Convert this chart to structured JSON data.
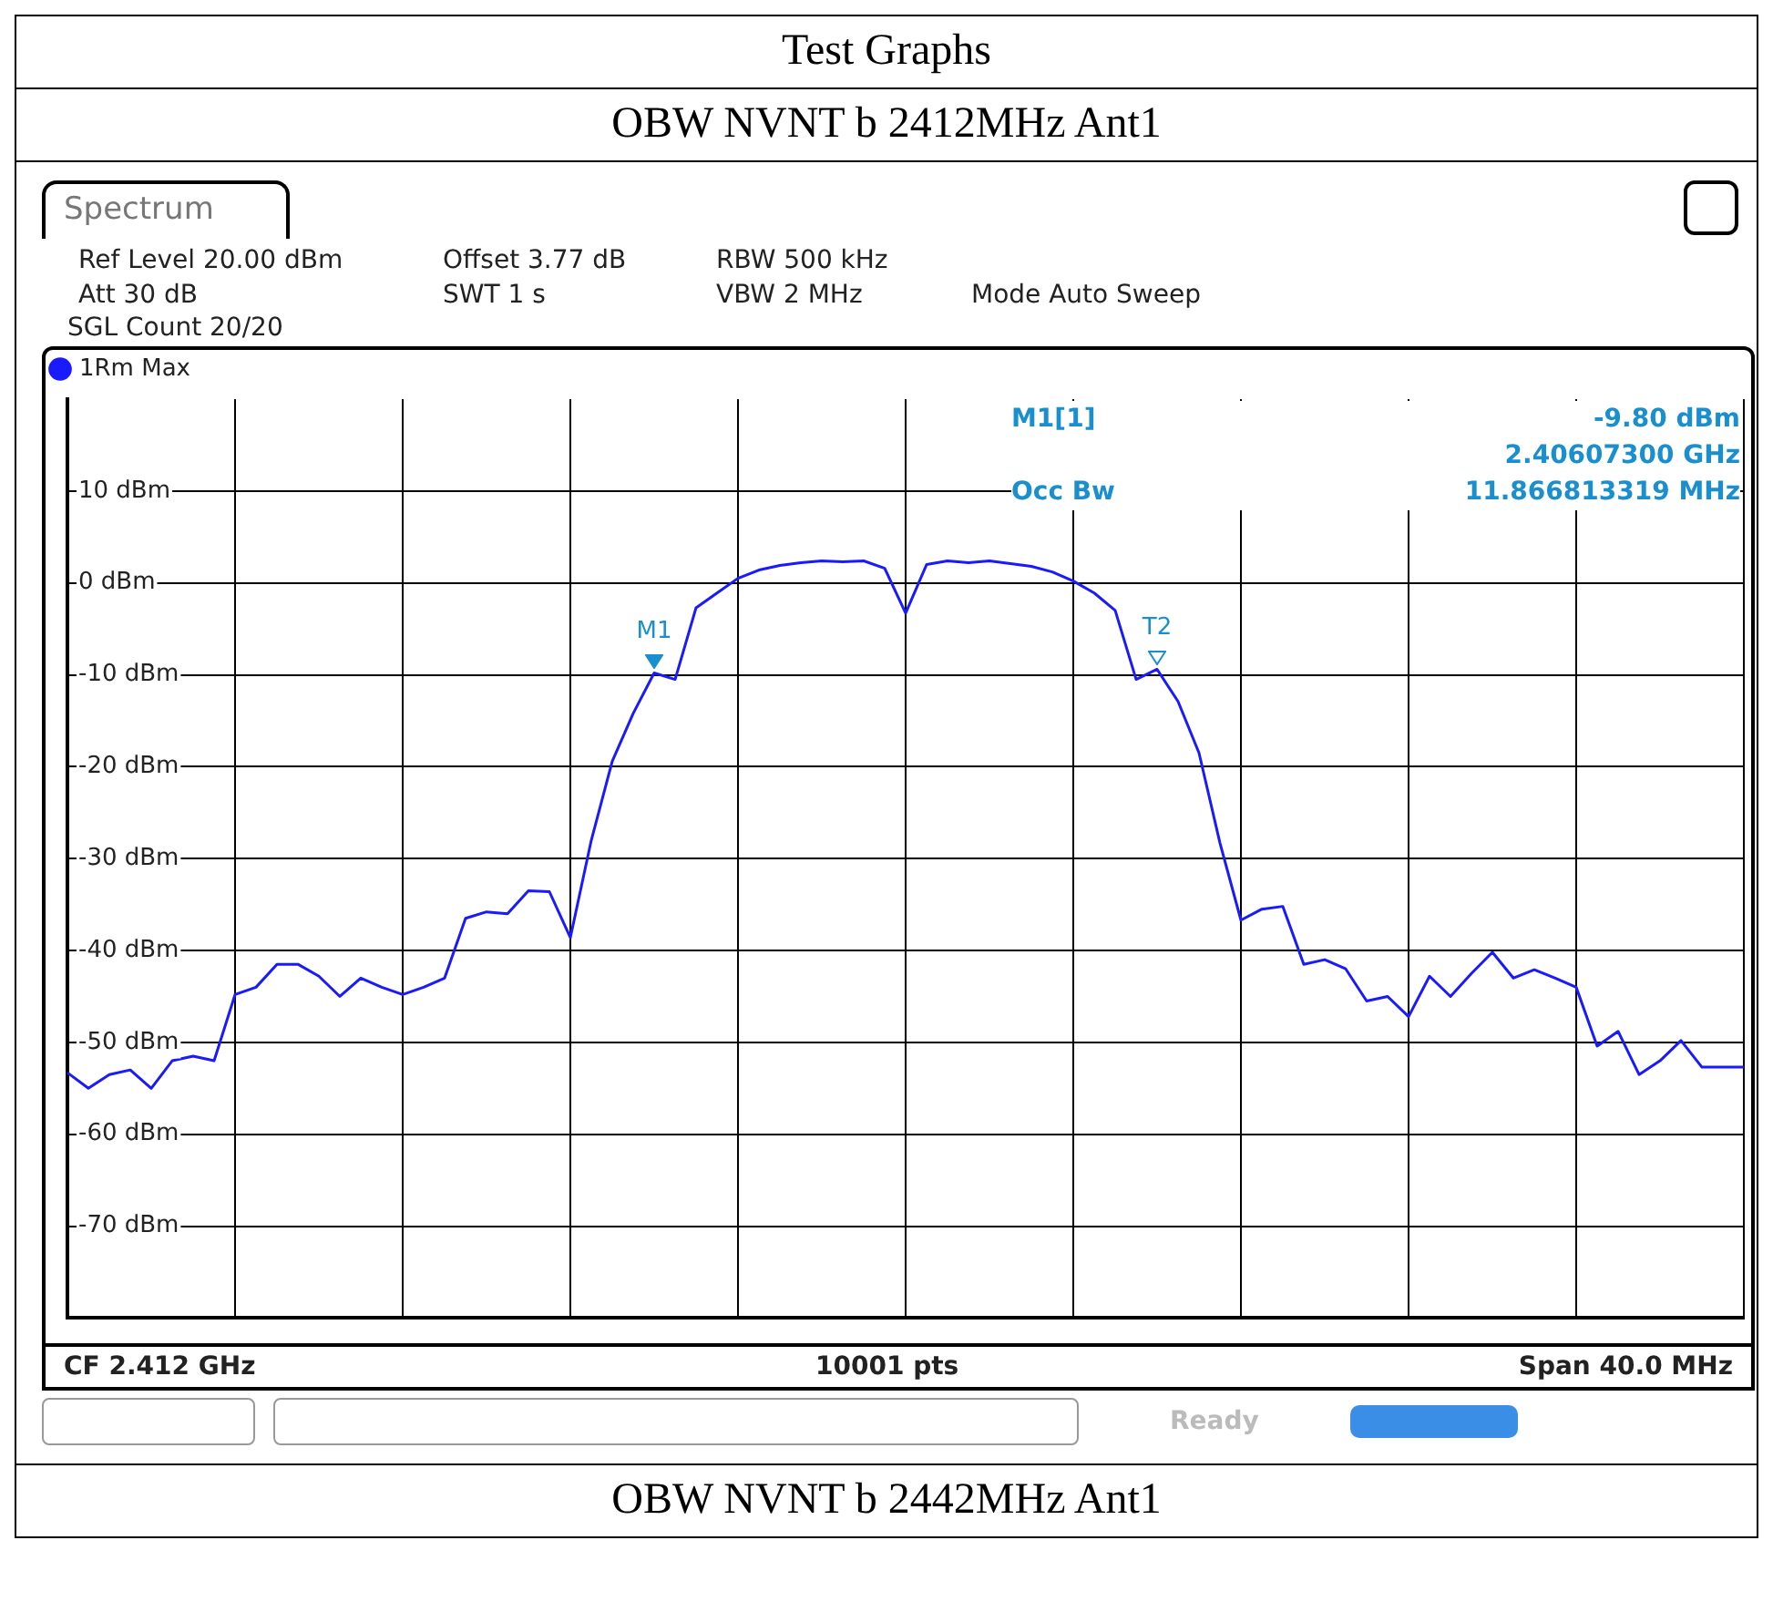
{
  "chart_data": {
    "type": "line",
    "title": "Test Graphs",
    "subtitle": "OBW NVNT b 2412MHz Ant1",
    "annotations": [
      "Spectrum",
      "Ref Level 20.00 dBm",
      "Offset 3.77 dB",
      "RBW 500 kHz",
      "Att 30 dB",
      "SWT 1 s",
      "VBW 2 MHz",
      "Mode Auto Sweep",
      "SGL Count 20/20",
      "M1[1]",
      "-9.80 dBm",
      "2.40607300 GHz",
      "Occ Bw",
      "11.866813319 MHz",
      "CF 2.412 GHz",
      "10001 pts",
      "Span 40.0 MHz",
      "Ready",
      "OBW NVNT b 2442MHz Ant1",
      {
        "text": "M1",
        "y": -9.8
      },
      {
        "text": "T2",
        "y": -9.4
      }
    ],
    "categories": [
      null,
      null,
      null,
      null,
      null,
      null,
      null,
      null,
      null,
      null,
      null,
      null,
      null,
      null,
      null,
      null,
      null,
      null,
      null,
      null,
      null,
      null,
      null,
      null,
      null,
      null,
      null,
      null,
      null,
      null,
      null,
      null,
      null,
      null,
      null,
      null,
      null,
      null,
      null,
      null,
      null,
      null,
      null,
      null,
      null,
      null,
      null,
      null,
      null,
      null,
      null,
      null,
      null,
      null,
      null,
      null,
      null,
      null,
      null,
      null,
      null,
      null,
      null,
      null,
      null,
      null,
      null,
      null,
      null,
      null,
      null,
      null,
      null,
      null,
      null,
      null,
      null,
      null,
      null,
      null,
      null
    ],
    "ylim": [
      -80,
      20
    ],
    "yticks": [
      {
        "value": -70,
        "label": "-70 dBm"
      },
      {
        "value": -60,
        "label": "-60 dBm"
      },
      {
        "value": -50,
        "label": "-50 dBm"
      },
      {
        "value": -40,
        "label": "-40 dBm"
      },
      {
        "value": -30,
        "label": "-30 dBm"
      },
      {
        "value": -20,
        "label": "-20 dBm"
      },
      {
        "value": -10,
        "label": "-10 dBm"
      },
      {
        "value": 0,
        "label": "0 dBm"
      },
      {
        "value": 10,
        "label": "10 dBm"
      }
    ],
    "tick_labels": "y",
    "grid": true,
    "legend": "top left",
    "series": [
      {
        "name": "1Rm Max",
        "color": "#1a1aff",
        "values": [
          -53.3,
          -55.0,
          -53.5,
          -53.0,
          -55.0,
          -52.0,
          -51.5,
          -52.0,
          -44.8,
          -44.0,
          -41.5,
          -41.5,
          -42.8,
          -45.0,
          -43.0,
          -44.0,
          -44.8,
          -44.0,
          -43.0,
          -36.5,
          -35.8,
          -36.0,
          -33.5,
          -33.6,
          -38.6,
          -28.0,
          -19.4,
          -14.2,
          -9.8,
          -10.5,
          -2.7,
          -1.1,
          0.5,
          1.4,
          1.9,
          2.2,
          2.4,
          2.3,
          2.4,
          1.6,
          -3.3,
          2.0,
          2.4,
          2.2,
          2.4,
          2.1,
          1.8,
          1.2,
          0.2,
          -1.1,
          -3.0,
          -10.5,
          -9.4,
          -12.9,
          -18.5,
          -28.3,
          -36.7,
          -35.5,
          -35.2,
          -41.5,
          -41.0,
          -42.0,
          -45.5,
          -45.0,
          -47.2,
          -42.8,
          -45.0,
          -42.5,
          -40.2,
          -43.0,
          -42.1,
          -43.0,
          -44.0,
          -50.4,
          -48.8,
          -53.5,
          -52.0,
          -49.8,
          -52.7,
          -52.7,
          -52.7
        ]
      }
    ]
  }
}
